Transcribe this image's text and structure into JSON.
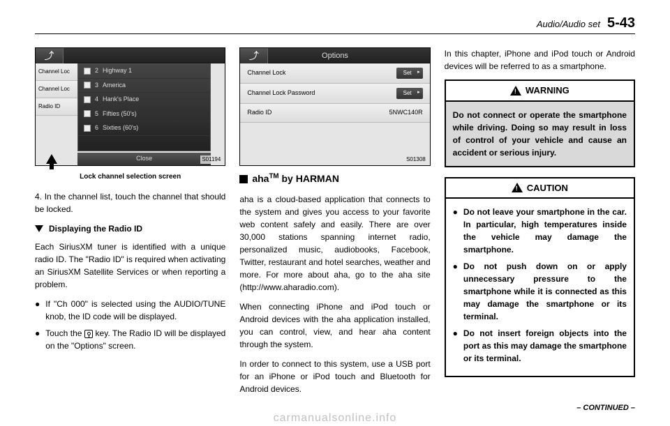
{
  "header": {
    "section": "Audio/Audio set",
    "page": "5-43"
  },
  "col1": {
    "screenshot": {
      "sidebar": [
        "Channel Loc",
        "Channel Loc",
        "Radio ID"
      ],
      "popup_items": [
        {
          "num": "2",
          "label": "Highway 1"
        },
        {
          "num": "3",
          "label": "America"
        },
        {
          "num": "4",
          "label": "Hank's Place"
        },
        {
          "num": "5",
          "label": "Fifties (50's)"
        },
        {
          "num": "6",
          "label": "Sixties (60's)"
        }
      ],
      "close": "Close",
      "img_id": "S01194"
    },
    "caption": "Lock channel selection screen",
    "para1": "4.  In the channel list, touch the channel that should be locked.",
    "subheading": "Displaying the Radio ID",
    "para2": "Each SiriusXM tuner is identified with a unique radio ID. The \"Radio ID\" is required when activating an SiriusXM Satellite Services or when reporting a problem.",
    "bullet1": "If \"Ch 000\" is selected using the AUDIO/TUNE knob, the ID code will be displayed.",
    "bullet2_a": "Touch the ",
    "bullet2_b": " key. The Radio ID will be displayed on the \"Options\" screen."
  },
  "col2": {
    "screenshot": {
      "title": "Options",
      "rows": [
        {
          "label": "Channel Lock",
          "value_type": "button",
          "value": "Set"
        },
        {
          "label": "Channel Lock Password",
          "value_type": "button",
          "value": "Set"
        },
        {
          "label": "Radio ID",
          "value_type": "text",
          "value": "5NWC140R"
        }
      ],
      "img_id": "S01308"
    },
    "section_title_a": "aha",
    "section_title_tm": "TM",
    "section_title_b": " by HARMAN",
    "para1": "aha is a cloud-based application that connects to the system and gives you access to your favorite web content safely and easily. There are over 30,000 stations spanning internet radio, personalized music, audiobooks, Facebook, Twitter, restaurant and hotel searches, weather and more. For more about aha, go to the aha site (http://www.aharadio.com).",
    "para2": "When connecting iPhone and iPod touch or Android devices with the aha application installed, you can control, view, and hear aha content through the system.",
    "para3": "In order to connect to this system, use a USB port for an iPhone or iPod touch and Bluetooth for Android devices."
  },
  "col3": {
    "intro": "In this chapter, iPhone and iPod touch or Android devices will be referred to as a smartphone.",
    "warning": {
      "title": "WARNING",
      "body": "Do not connect or operate the smartphone while driving. Doing so may result in loss of control of your vehicle and cause an accident or serious injury."
    },
    "caution": {
      "title": "CAUTION",
      "bullets": [
        "Do not leave your smartphone in the car. In particular, high temperatures inside the vehicle may damage the smartphone.",
        "Do not push down on or apply unnecessary pressure to the smartphone while it is connected as this may damage the smartphone or its terminal.",
        "Do not insert foreign objects into the port as this may damage the smartphone or its terminal."
      ]
    }
  },
  "continued": "– CONTINUED –",
  "watermark": "carmanualsonline.info"
}
